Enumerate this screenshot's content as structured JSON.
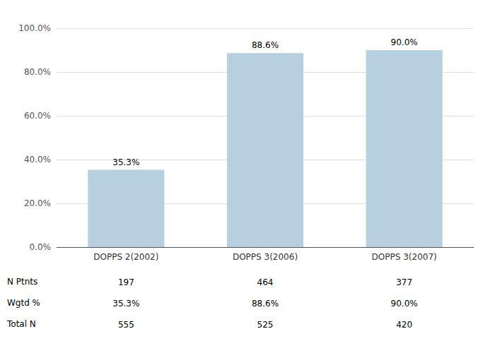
{
  "chart_data": {
    "type": "bar",
    "categories": [
      "DOPPS 2(2002)",
      "DOPPS 3(2006)",
      "DOPPS 3(2007)"
    ],
    "values": [
      35.3,
      88.6,
      90.0
    ],
    "value_labels": [
      "35.3%",
      "88.6%",
      "90.0%"
    ],
    "data_labels": true,
    "color": "#b8cfe0",
    "ylim": [
      0,
      100
    ],
    "yticks": [
      {
        "value": 0,
        "label": "0.0%"
      },
      {
        "value": 20,
        "label": "20.0%"
      },
      {
        "value": 40,
        "label": "40.0%"
      },
      {
        "value": 60,
        "label": "60.0%"
      },
      {
        "value": 80,
        "label": "80.0%"
      },
      {
        "value": 100,
        "label": "100.0%"
      }
    ],
    "grid": true,
    "table_row_labels": [
      "N Ptnts",
      "Wgtd %",
      "Total N"
    ],
    "table_data": [
      [
        "197",
        "464",
        "377"
      ],
      [
        "35.3%",
        "88.6%",
        "90.0%"
      ],
      [
        "555",
        "525",
        "420"
      ]
    ]
  }
}
